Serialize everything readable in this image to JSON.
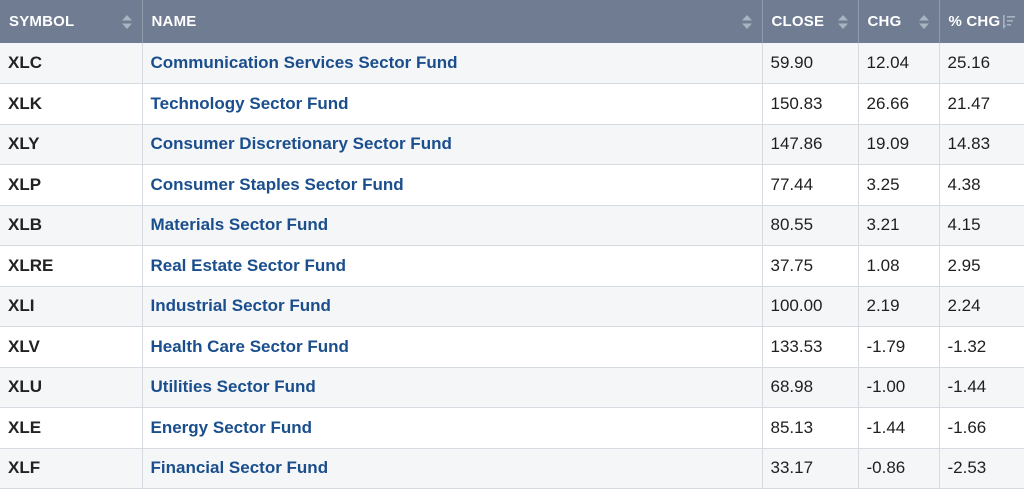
{
  "columns": {
    "symbol": "SYMBOL",
    "name": "NAME",
    "close": "CLOSE",
    "chg": "CHG",
    "pct_chg": "% CHG"
  },
  "colors": {
    "header_bg": "#6f7c91",
    "link": "#1a4e8c",
    "row_alt": "#f5f6f8"
  },
  "rows": [
    {
      "symbol": "XLC",
      "name": "Communication Services Sector Fund",
      "close": "59.90",
      "chg": "12.04",
      "pct_chg": "25.16"
    },
    {
      "symbol": "XLK",
      "name": "Technology Sector Fund",
      "close": "150.83",
      "chg": "26.66",
      "pct_chg": "21.47"
    },
    {
      "symbol": "XLY",
      "name": "Consumer Discretionary Sector Fund",
      "close": "147.86",
      "chg": "19.09",
      "pct_chg": "14.83"
    },
    {
      "symbol": "XLP",
      "name": "Consumer Staples Sector Fund",
      "close": "77.44",
      "chg": "3.25",
      "pct_chg": "4.38"
    },
    {
      "symbol": "XLB",
      "name": "Materials Sector Fund",
      "close": "80.55",
      "chg": "3.21",
      "pct_chg": "4.15"
    },
    {
      "symbol": "XLRE",
      "name": "Real Estate Sector Fund",
      "close": "37.75",
      "chg": "1.08",
      "pct_chg": "2.95"
    },
    {
      "symbol": "XLI",
      "name": "Industrial Sector Fund",
      "close": "100.00",
      "chg": "2.19",
      "pct_chg": "2.24"
    },
    {
      "symbol": "XLV",
      "name": "Health Care Sector Fund",
      "close": "133.53",
      "chg": "-1.79",
      "pct_chg": "-1.32"
    },
    {
      "symbol": "XLU",
      "name": "Utilities Sector Fund",
      "close": "68.98",
      "chg": "-1.00",
      "pct_chg": "-1.44"
    },
    {
      "symbol": "XLE",
      "name": "Energy Sector Fund",
      "close": "85.13",
      "chg": "-1.44",
      "pct_chg": "-1.66"
    },
    {
      "symbol": "XLF",
      "name": "Financial Sector Fund",
      "close": "33.17",
      "chg": "-0.86",
      "pct_chg": "-2.53"
    }
  ]
}
